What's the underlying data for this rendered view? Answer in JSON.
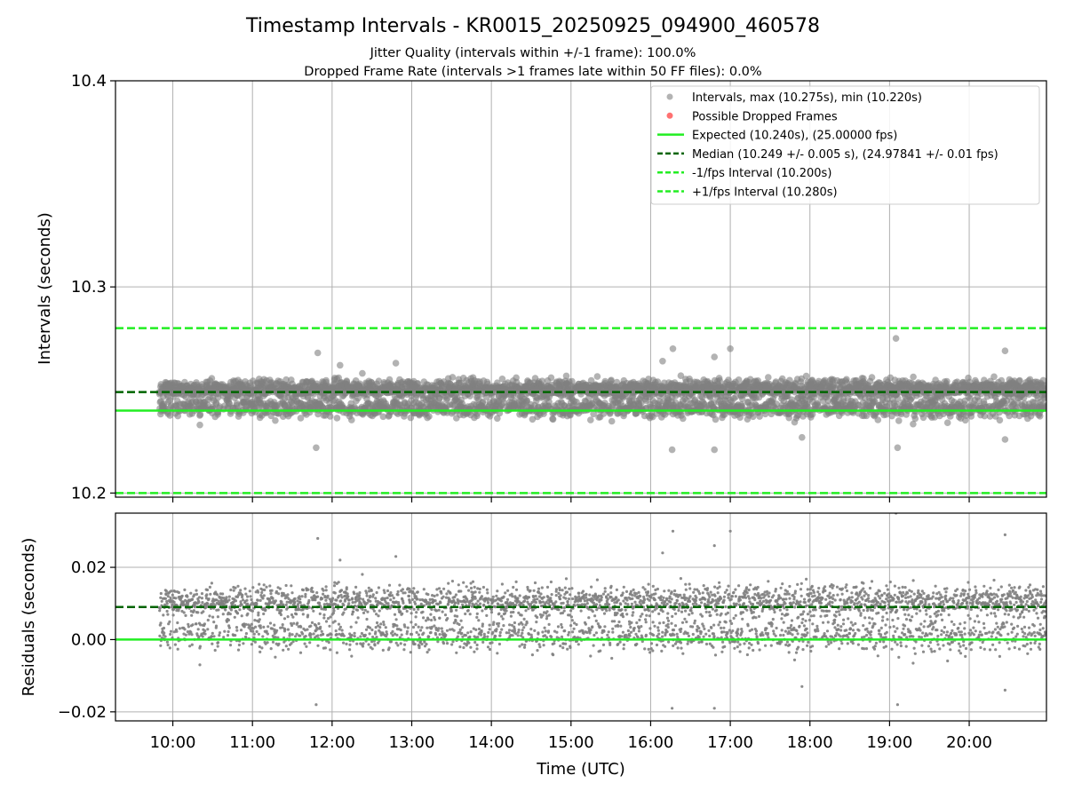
{
  "figure": {
    "title": "Timestamp Intervals - KR0015_20250925_094900_460578",
    "subtitle_1": "Jitter Quality (intervals within +/-1 frame): 100.0%",
    "subtitle_2": "Dropped Frame Rate (intervals >1 frames late within 50 FF files): 0.0%"
  },
  "colors": {
    "points": "#808080",
    "dropped": "#ff4d4d",
    "expected": "#22ee22",
    "median": "#006400",
    "fps_band": "#22ee22",
    "grid": "#b0b0b0"
  },
  "chart_data": [
    {
      "type": "scatter",
      "panel": "intervals",
      "ylabel": "Intervals (seconds)",
      "xlabel": "",
      "x_unit": "hours UTC",
      "xlim": [
        9.28,
        20.97
      ],
      "ylim": [
        10.198,
        10.4
      ],
      "yticks": [
        10.2,
        10.3,
        10.4
      ],
      "ytick_labels": [
        "10.2",
        "10.3",
        "10.4"
      ],
      "grid": true,
      "legend_position": "top-right",
      "point_cloud": {
        "x_start": 9.83,
        "x_end": 20.97,
        "count": 3900,
        "center": 10.249,
        "spread": 0.005,
        "min": 10.22,
        "max": 10.275
      },
      "outliers": [
        {
          "x": 11.8,
          "y": 10.222
        },
        {
          "x": 11.82,
          "y": 10.268
        },
        {
          "x": 12.1,
          "y": 10.262
        },
        {
          "x": 12.8,
          "y": 10.263
        },
        {
          "x": 16.15,
          "y": 10.264
        },
        {
          "x": 16.28,
          "y": 10.27
        },
        {
          "x": 16.27,
          "y": 10.221
        },
        {
          "x": 16.8,
          "y": 10.266
        },
        {
          "x": 16.8,
          "y": 10.221
        },
        {
          "x": 17.0,
          "y": 10.27
        },
        {
          "x": 17.9,
          "y": 10.227
        },
        {
          "x": 19.08,
          "y": 10.275
        },
        {
          "x": 19.1,
          "y": 10.222
        },
        {
          "x": 20.45,
          "y": 10.226
        },
        {
          "x": 20.45,
          "y": 10.269
        }
      ],
      "series": [
        {
          "name": "Intervals, max (10.275s), min (10.220s)",
          "kind": "points"
        },
        {
          "name": "Possible Dropped Frames",
          "kind": "points",
          "values": []
        },
        {
          "name": "Expected (10.240s), (25.00000 fps)",
          "kind": "hline",
          "value": 10.24
        },
        {
          "name": "Median (10.249 +/- 0.005 s), (24.97841 +/- 0.01 fps)",
          "kind": "hline",
          "value": 10.249
        },
        {
          "name": "-1/fps Interval (10.200s)",
          "kind": "hline",
          "value": 10.2
        },
        {
          "name": "+1/fps Interval (10.280s)",
          "kind": "hline",
          "value": 10.28
        }
      ]
    },
    {
      "type": "scatter",
      "panel": "residuals",
      "ylabel": "Residuals (seconds)",
      "xlabel": "Time (UTC)",
      "x_unit": "hours UTC",
      "xlim": [
        9.28,
        20.97
      ],
      "ylim": [
        -0.0225,
        0.035
      ],
      "yticks": [
        -0.02,
        0.0,
        0.02
      ],
      "ytick_labels": [
        "−0.02",
        "0.00",
        "0.02"
      ],
      "xticks": [
        10,
        11,
        12,
        13,
        14,
        15,
        16,
        17,
        18,
        19,
        20
      ],
      "xtick_labels": [
        "10:00",
        "11:00",
        "12:00",
        "13:00",
        "14:00",
        "15:00",
        "16:00",
        "17:00",
        "18:00",
        "19:00",
        "20:00"
      ],
      "grid": true,
      "reference_lines": [
        {
          "name": "expected",
          "value": 0.0
        },
        {
          "name": "median",
          "value": 0.009
        }
      ]
    }
  ]
}
